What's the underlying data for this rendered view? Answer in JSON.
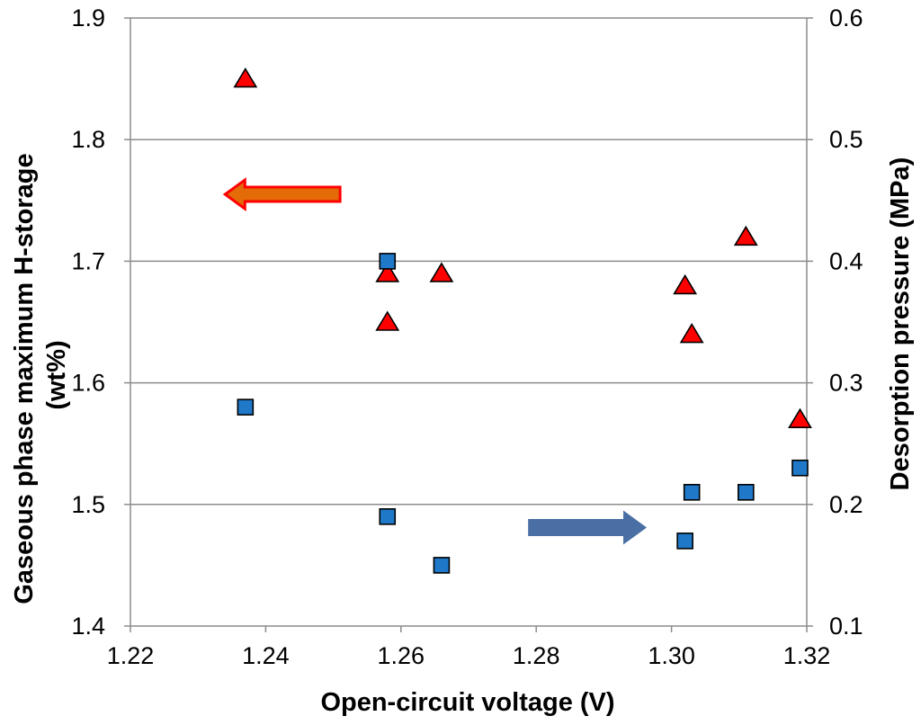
{
  "chart_data": {
    "type": "scatter",
    "title": "",
    "xlabel": "Open-circuit voltage (V)",
    "ylabel_left": [
      "Gaseous  phase maximum H-storage",
      "(wt%)"
    ],
    "ylabel_right": "Desorption pressure (MPa)",
    "xlim": [
      1.22,
      1.32
    ],
    "ylim_left": [
      1.4,
      1.9
    ],
    "ylim_right": [
      0.1,
      0.6
    ],
    "x_ticks": [
      "1.22",
      "1.24",
      "1.26",
      "1.28",
      "1.30",
      "1.32"
    ],
    "y_left_ticks": [
      "1.4",
      "1.5",
      "1.6",
      "1.7",
      "1.8",
      "1.9"
    ],
    "y_right_ticks": [
      "0.1",
      "0.2",
      "0.3",
      "0.4",
      "0.5",
      "0.6"
    ],
    "grid": true,
    "series": [
      {
        "name": "Gaseous phase maximum H-storage",
        "axis": "left",
        "marker": "triangle",
        "color": "#ff0000",
        "points": [
          {
            "x": 1.237,
            "y": 1.85
          },
          {
            "x": 1.258,
            "y": 1.69
          },
          {
            "x": 1.258,
            "y": 1.65
          },
          {
            "x": 1.266,
            "y": 1.69
          },
          {
            "x": 1.302,
            "y": 1.68
          },
          {
            "x": 1.303,
            "y": 1.64
          },
          {
            "x": 1.311,
            "y": 1.72
          },
          {
            "x": 1.319,
            "y": 1.57
          }
        ]
      },
      {
        "name": "Desorption pressure",
        "axis": "right",
        "marker": "square",
        "color": "#1f78c8",
        "points": [
          {
            "x": 1.237,
            "y": 0.28
          },
          {
            "x": 1.258,
            "y": 0.4
          },
          {
            "x": 1.258,
            "y": 0.19
          },
          {
            "x": 1.266,
            "y": 0.15
          },
          {
            "x": 1.302,
            "y": 0.17
          },
          {
            "x": 1.303,
            "y": 0.21
          },
          {
            "x": 1.311,
            "y": 0.21
          },
          {
            "x": 1.319,
            "y": 0.23
          }
        ]
      }
    ],
    "annotations": [
      {
        "name": "left-axis-arrow",
        "direction": "left",
        "color": "#ff0000",
        "fill": "#e36c09",
        "x_from": 1.251,
        "x_to": 1.234,
        "y": 1.755,
        "axis": "left"
      },
      {
        "name": "right-axis-arrow",
        "direction": "right",
        "color": "#4a6fa5",
        "fill": "#4a6fa5",
        "x_from": 1.279,
        "x_to": 1.296,
        "y": 0.181,
        "axis": "right"
      }
    ]
  }
}
